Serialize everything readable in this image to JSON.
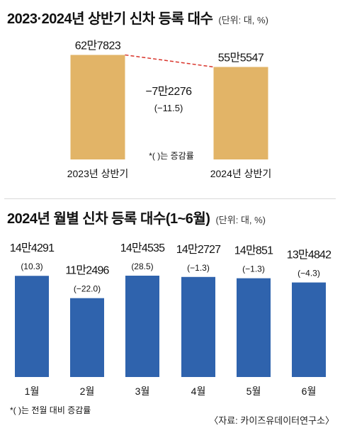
{
  "colors": {
    "gold": "#e2b467",
    "blue": "#2f63ad",
    "dash": "#d9342b",
    "text": "#111111"
  },
  "top": {
    "title": "2023·2024년 상반기 신차 등록 대수",
    "unit": "(단위: 대, %)"
  },
  "bottom": {
    "title": "2024년 월별 신차 등록 대수(1~6월)",
    "unit": "(단위: 대, %)",
    "source": "〈자료: 카이즈유데이터연구소〉"
  },
  "chart_data": [
    {
      "type": "bar",
      "title": "2023·2024년 상반기 신차 등록 대수",
      "unit": "(단위: 대, %)",
      "categories": [
        "2023년 상반기",
        "2024년 상반기"
      ],
      "values": [
        627823,
        555547
      ],
      "value_labels": [
        "62만7823",
        "55만5547"
      ],
      "change_label": "−7만2276",
      "change_pct_label": "(−11.5)",
      "change_pct": -11.5,
      "note": "*(   )는 증감률",
      "color": "#e2b467"
    },
    {
      "type": "bar",
      "title": "2024년 월별 신차 등록 대수(1~6월)",
      "unit": "(단위: 대, %)",
      "categories": [
        "1월",
        "2월",
        "3월",
        "4월",
        "5월",
        "6월"
      ],
      "values": [
        144291,
        112496,
        144535,
        142727,
        140851,
        134842
      ],
      "value_labels": [
        "14만4291",
        "11만2496",
        "14만4535",
        "14만2727",
        "14만851",
        "13만4842"
      ],
      "change_pct": [
        10.3,
        -22.0,
        28.5,
        -1.3,
        -1.3,
        -4.3
      ],
      "change_labels": [
        "(10.3)",
        "(−22.0)",
        "(28.5)",
        "(−1.3)",
        "(−1.3)",
        "(−4.3)"
      ],
      "note": "*(   )는 전월 대비 증감률",
      "color": "#2f63ad"
    }
  ]
}
